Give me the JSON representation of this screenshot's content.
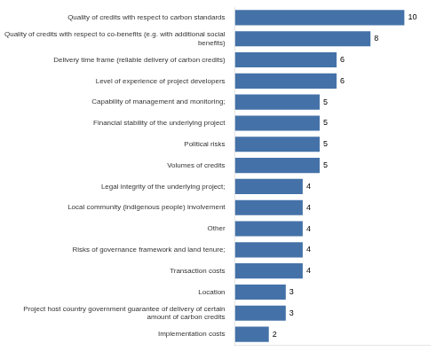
{
  "chart_data": {
    "type": "bar",
    "orientation": "horizontal",
    "categories": [
      "Quality of credits with respect to carbon standards",
      "Quality of credits with respect to co-benefits (e.g. with additional social\nbenefits)",
      "Delivery time frame (reliable delivery of carbon credits)",
      "Level of experience of project developers",
      "Capability of management and monitoring;",
      "Financial stability of the underlying project",
      "Political risks",
      "Volumes of credits",
      "Legal integrity of the underlying project;",
      "Local community (indigenous people) involvement",
      "Other",
      "Risks of governance framework and land tenure;",
      "Transaction costs",
      "Location",
      "Project host country government guarantee of delivery of certain\namount of carbon credits",
      "Implementation costs"
    ],
    "values": [
      10,
      8,
      6,
      6,
      5,
      5,
      5,
      5,
      4,
      4,
      4,
      4,
      4,
      3,
      3,
      2
    ],
    "color": "#4472a8",
    "xlim": [
      0,
      11.5
    ],
    "grid": false,
    "data_labels": true,
    "tick_labels": "y"
  }
}
